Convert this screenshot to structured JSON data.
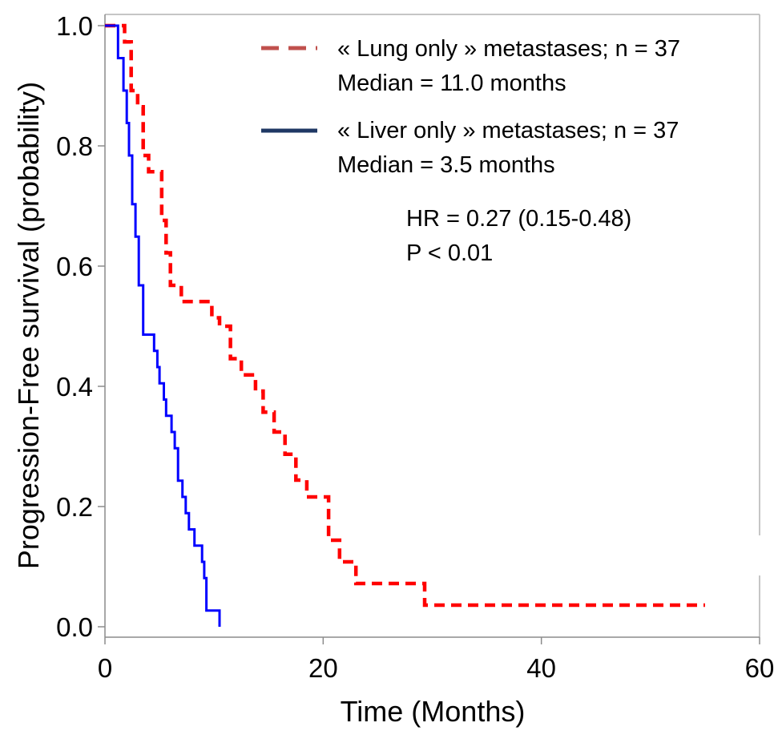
{
  "chart_data": {
    "type": "line",
    "chart_style": "Kaplan-Meier step curves",
    "xlabel": "Time (Months)",
    "ylabel": "Progression-Free survival  (probability)",
    "xlim": [
      0,
      60
    ],
    "ylim": [
      0,
      1.0
    ],
    "x_ticks": [
      "0",
      "20",
      "40",
      "60"
    ],
    "y_ticks": [
      "0.0",
      "0.2",
      "0.4",
      "0.6",
      "0.8",
      "1.0"
    ],
    "grid": false,
    "legend_position": "top-right",
    "series": [
      {
        "name": "« Lung only » metastases; n = 37",
        "median_label": "Median = 11.0 months",
        "color": "#ff0000",
        "legend_color": "#c0504d",
        "line_style": "dashed",
        "x": [
          0,
          1.8,
          2.4,
          3.0,
          3.5,
          4.0,
          5.2,
          5.6,
          6.0,
          7.0,
          9.8,
          10.5,
          11.5,
          12.5,
          13.8,
          14.5,
          15.5,
          16.5,
          17.5,
          18.5,
          19.5,
          20.5,
          21.5,
          23.0,
          29.3,
          55.0
        ],
        "y": [
          1.0,
          0.973,
          0.892,
          0.865,
          0.784,
          0.757,
          0.676,
          0.622,
          0.568,
          0.541,
          0.514,
          0.5,
          0.446,
          0.419,
          0.392,
          0.357,
          0.324,
          0.287,
          0.244,
          0.216,
          0.216,
          0.144,
          0.108,
          0.072,
          0.036,
          0.036
        ]
      },
      {
        "name": "« Liver only » metastases; n = 37",
        "median_label": "Median = 3.5 months",
        "color": "#0000ff",
        "legend_color": "#1f3864",
        "line_style": "solid",
        "x": [
          0,
          1.2,
          1.7,
          2.0,
          2.2,
          2.5,
          2.8,
          3.1,
          3.5,
          4.5,
          4.8,
          5.0,
          5.4,
          5.6,
          6.1,
          6.4,
          6.7,
          7.1,
          7.4,
          7.7,
          8.2,
          8.9,
          9.1,
          9.3,
          10.5
        ],
        "y": [
          1.0,
          0.946,
          0.892,
          0.838,
          0.784,
          0.703,
          0.649,
          0.568,
          0.486,
          0.459,
          0.432,
          0.405,
          0.378,
          0.351,
          0.324,
          0.297,
          0.243,
          0.216,
          0.189,
          0.162,
          0.135,
          0.108,
          0.081,
          0.027,
          0.0
        ]
      }
    ],
    "annotations": [
      "HR = 0.27 (0.15-0.48)",
      "P < 0.01"
    ]
  }
}
